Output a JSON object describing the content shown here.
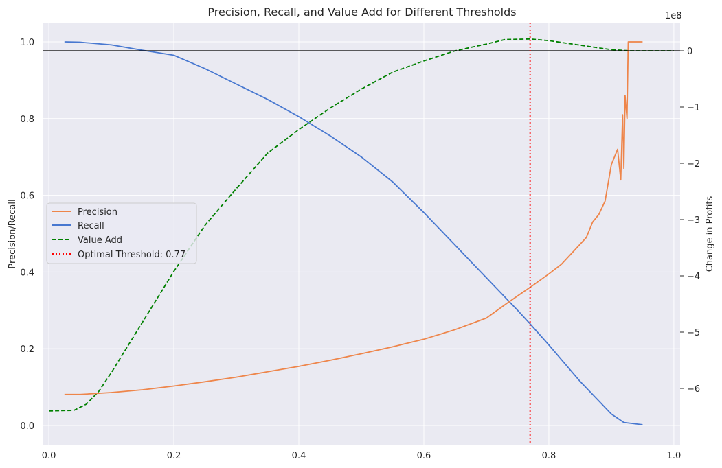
{
  "chart_data": {
    "type": "line",
    "title": "Precision, Recall, and Value Add for Different Thresholds",
    "xlabel": "",
    "ylabel": "Precision/Recall",
    "y2label": "Change in Profits",
    "y2_offset_text": "1e8",
    "xlim": [
      -0.01,
      1.01
    ],
    "ylim": [
      -0.05,
      1.05
    ],
    "y2lim": [
      -7.0,
      0.5
    ],
    "x_ticks": [
      "0.0",
      "0.2",
      "0.4",
      "0.6",
      "0.8",
      "1.0"
    ],
    "y_ticks": [
      "0.0",
      "0.2",
      "0.4",
      "0.6",
      "0.8",
      "1.0"
    ],
    "y2_ticks": [
      "0",
      "−1",
      "−2",
      "−3",
      "−4",
      "−5",
      "−6"
    ],
    "grid": true,
    "legend_position": "center-left",
    "colors": {
      "precision": "#ee854a",
      "recall": "#4878d0",
      "value_add": "#008000",
      "threshold": "#ff0000",
      "baseline": "#000000",
      "plot_bg": "#eaeaf2",
      "grid": "#ffffff"
    },
    "series": [
      {
        "name": "Precision",
        "axis": "left",
        "style": "solid",
        "x": [
          0.025,
          0.05,
          0.1,
          0.15,
          0.2,
          0.25,
          0.3,
          0.35,
          0.4,
          0.45,
          0.5,
          0.55,
          0.6,
          0.65,
          0.7,
          0.73,
          0.75,
          0.77,
          0.8,
          0.82,
          0.84,
          0.86,
          0.87,
          0.88,
          0.89,
          0.9,
          0.91,
          0.915,
          0.918,
          0.92,
          0.922,
          0.925,
          0.927,
          0.93,
          0.95
        ],
        "values": [
          0.081,
          0.081,
          0.086,
          0.093,
          0.103,
          0.114,
          0.126,
          0.14,
          0.154,
          0.17,
          0.187,
          0.205,
          0.225,
          0.25,
          0.28,
          0.315,
          0.338,
          0.36,
          0.395,
          0.42,
          0.455,
          0.49,
          0.53,
          0.55,
          0.585,
          0.68,
          0.72,
          0.64,
          0.81,
          0.67,
          0.86,
          0.8,
          1.0,
          1.0,
          1.0
        ]
      },
      {
        "name": "Recall",
        "axis": "left",
        "style": "solid",
        "x": [
          0.025,
          0.05,
          0.1,
          0.15,
          0.2,
          0.25,
          0.3,
          0.35,
          0.4,
          0.45,
          0.5,
          0.55,
          0.6,
          0.65,
          0.7,
          0.75,
          0.77,
          0.8,
          0.85,
          0.9,
          0.92,
          0.95
        ],
        "values": [
          1.0,
          0.999,
          0.992,
          0.978,
          0.965,
          0.93,
          0.89,
          0.85,
          0.805,
          0.755,
          0.7,
          0.635,
          0.555,
          0.47,
          0.385,
          0.3,
          0.265,
          0.21,
          0.115,
          0.03,
          0.008,
          0.002
        ]
      },
      {
        "name": "Value Add",
        "axis": "right",
        "style": "dashed",
        "x": [
          0.0,
          0.04,
          0.06,
          0.08,
          0.1,
          0.15,
          0.2,
          0.25,
          0.3,
          0.35,
          0.4,
          0.45,
          0.5,
          0.55,
          0.6,
          0.65,
          0.7,
          0.73,
          0.77,
          0.8,
          0.85,
          0.9,
          0.93,
          1.0
        ],
        "values": [
          -6.4,
          -6.39,
          -6.28,
          -6.05,
          -5.72,
          -4.82,
          -3.92,
          -3.1,
          -2.45,
          -1.82,
          -1.4,
          -1.02,
          -0.68,
          -0.38,
          -0.18,
          0.0,
          0.12,
          0.2,
          0.21,
          0.18,
          0.1,
          0.02,
          0.0,
          0.0
        ]
      }
    ],
    "annotations": [
      {
        "type": "vline",
        "x": 0.77,
        "label": "Optimal Threshold: 0.77"
      },
      {
        "type": "hline",
        "axis": "right",
        "y": 0.0
      }
    ],
    "legend": [
      "Precision",
      "Recall",
      "Value Add",
      "Optimal Threshold: 0.77"
    ]
  }
}
